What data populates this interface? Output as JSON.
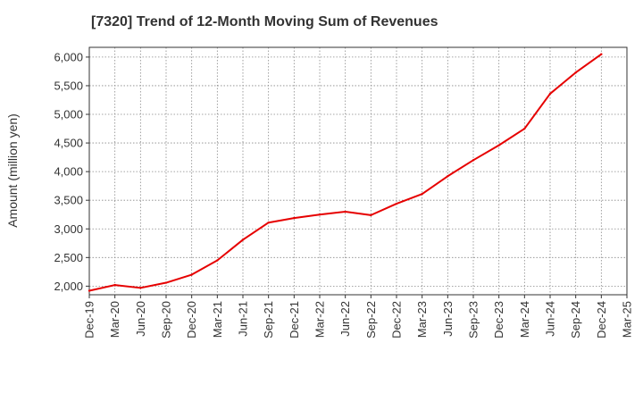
{
  "chart_data": {
    "type": "line",
    "title": "[7320]  Trend of 12-Month Moving Sum of Revenues",
    "xlabel": "",
    "ylabel": "Amount (million yen)",
    "ylim": [
      1850,
      6170
    ],
    "yticks": [
      2000,
      2500,
      3000,
      3500,
      4000,
      4500,
      5000,
      5500,
      6000
    ],
    "ytick_labels": [
      "2,000",
      "2,500",
      "3,000",
      "3,500",
      "4,000",
      "4,500",
      "5,000",
      "5,500",
      "6,000"
    ],
    "categories": [
      "Dec-19",
      "Mar-20",
      "Jun-20",
      "Sep-20",
      "Dec-20",
      "Mar-21",
      "Jun-21",
      "Sep-21",
      "Dec-21",
      "Mar-22",
      "Jun-22",
      "Sep-22",
      "Dec-22",
      "Mar-23",
      "Jun-23",
      "Sep-23",
      "Dec-23",
      "Mar-24",
      "Jun-24",
      "Sep-24",
      "Dec-24",
      "Mar-25"
    ],
    "series": [
      {
        "color": "#e60000",
        "values": [
          1920,
          2020,
          1970,
          2060,
          2200,
          2450,
          2810,
          3110,
          3190,
          3250,
          3300,
          3240,
          3440,
          3610,
          3920,
          4200,
          4460,
          4750,
          5360,
          5730,
          6050,
          null
        ]
      }
    ],
    "grid": true,
    "legend": "none"
  }
}
